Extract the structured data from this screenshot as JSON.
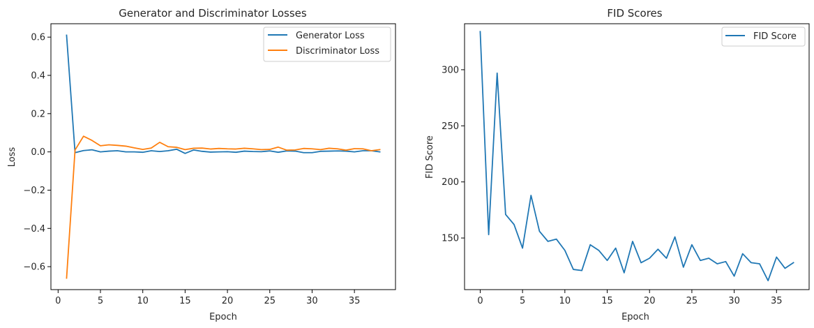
{
  "chart_data": [
    {
      "type": "line",
      "title": "Generator and Discriminator Losses",
      "xlabel": "Epoch",
      "ylabel": "Loss",
      "xlim": [
        -0.85,
        39.85
      ],
      "ylim": [
        -0.72,
        0.67
      ],
      "xticks": [
        0,
        5,
        10,
        15,
        20,
        25,
        30,
        35
      ],
      "yticks": [
        -0.6,
        -0.4,
        -0.2,
        0.0,
        0.2,
        0.4,
        0.6
      ],
      "xtick_labels": [
        "0",
        "5",
        "10",
        "15",
        "20",
        "25",
        "30",
        "35"
      ],
      "ytick_labels": [
        "−0.6",
        "−0.4",
        "−0.2",
        "0.0",
        "0.2",
        "0.4",
        "0.6"
      ],
      "legend": "top-right",
      "grid": false,
      "x": [
        1,
        2,
        3,
        4,
        5,
        6,
        7,
        8,
        9,
        10,
        11,
        12,
        13,
        14,
        15,
        16,
        17,
        18,
        19,
        20,
        21,
        22,
        23,
        24,
        25,
        26,
        27,
        28,
        29,
        30,
        31,
        32,
        33,
        34,
        35,
        36,
        37,
        38
      ],
      "series": [
        {
          "name": "Generator Loss",
          "color": "#1f77b4",
          "values": [
            0.61,
            -0.004,
            0.007,
            0.011,
            0.0,
            0.004,
            0.006,
            0.0,
            0.0,
            -0.002,
            0.006,
            0.002,
            0.006,
            0.014,
            -0.008,
            0.01,
            0.003,
            -0.001,
            0.0,
            0.001,
            -0.002,
            0.004,
            0.002,
            0.001,
            0.005,
            -0.002,
            0.005,
            0.004,
            -0.004,
            -0.004,
            0.003,
            0.004,
            0.005,
            0.004,
            0.0,
            0.006,
            0.006,
            0.0
          ]
        },
        {
          "name": "Discriminator Loss",
          "color": "#ff7f0e",
          "values": [
            -0.66,
            0.01,
            0.082,
            0.06,
            0.032,
            0.037,
            0.034,
            0.03,
            0.021,
            0.013,
            0.02,
            0.05,
            0.027,
            0.024,
            0.012,
            0.019,
            0.02,
            0.015,
            0.018,
            0.016,
            0.015,
            0.019,
            0.016,
            0.012,
            0.013,
            0.025,
            0.009,
            0.01,
            0.018,
            0.016,
            0.012,
            0.019,
            0.016,
            0.009,
            0.017,
            0.016,
            0.006,
            0.012
          ]
        }
      ]
    },
    {
      "type": "line",
      "title": "FID Scores",
      "xlabel": "Epoch",
      "ylabel": "FID Score",
      "xlim": [
        -1.85,
        38.85
      ],
      "ylim": [
        104,
        341
      ],
      "xticks": [
        0,
        5,
        10,
        15,
        20,
        25,
        30,
        35
      ],
      "yticks": [
        150,
        200,
        250,
        300
      ],
      "xtick_labels": [
        "0",
        "5",
        "10",
        "15",
        "20",
        "25",
        "30",
        "35"
      ],
      "ytick_labels": [
        "150",
        "200",
        "250",
        "300"
      ],
      "legend": "top-right",
      "grid": false,
      "x": [
        0,
        1,
        2,
        3,
        4,
        5,
        6,
        7,
        8,
        9,
        10,
        11,
        12,
        13,
        14,
        15,
        16,
        17,
        18,
        19,
        20,
        21,
        22,
        23,
        24,
        25,
        26,
        27,
        28,
        29,
        30,
        31,
        32,
        33,
        34,
        35,
        36,
        37
      ],
      "series": [
        {
          "name": "FID Score",
          "color": "#1f77b4",
          "values": [
            334,
            153,
            297,
            171,
            162,
            141,
            188,
            156,
            147,
            149,
            139,
            122,
            121,
            144,
            139,
            130,
            141,
            119,
            147,
            128,
            132,
            140,
            132,
            151,
            124,
            144,
            130,
            132,
            127,
            129,
            116,
            136,
            128,
            127,
            112,
            133,
            123,
            128
          ]
        }
      ]
    }
  ]
}
